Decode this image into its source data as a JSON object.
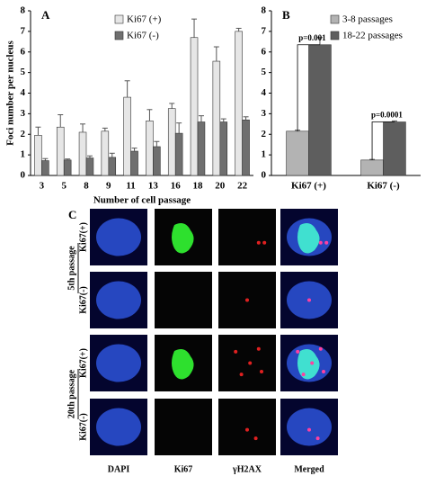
{
  "chart_data": [
    {
      "type": "bar",
      "title": "A",
      "x_label": "Number of cell passage",
      "y_label": "Foci number per nucleus",
      "categories": [
        "3",
        "5",
        "8",
        "9",
        "11",
        "13",
        "16",
        "18",
        "20",
        "22"
      ],
      "series": [
        {
          "name": "Ki67 (+)",
          "color": "#e6e6e6",
          "values": [
            1.95,
            2.35,
            2.1,
            2.15,
            3.8,
            2.65,
            3.25,
            6.7,
            5.55,
            7.0
          ],
          "errors": [
            0.4,
            0.6,
            0.4,
            0.15,
            0.8,
            0.55,
            0.25,
            0.9,
            0.7,
            0.15
          ]
        },
        {
          "name": "Ki67 (-)",
          "color": "#6f6f6f",
          "values": [
            0.72,
            0.75,
            0.85,
            0.88,
            1.18,
            1.4,
            2.05,
            2.6,
            2.6,
            2.7
          ],
          "errors": [
            0.1,
            0.05,
            0.1,
            0.2,
            0.15,
            0.25,
            0.5,
            0.3,
            0.15,
            0.15
          ]
        }
      ],
      "ylim": [
        0,
        8
      ],
      "yticks": [
        0,
        1,
        2,
        3,
        4,
        5,
        6,
        7,
        8
      ],
      "legend": "upper center"
    },
    {
      "type": "bar",
      "title": "B",
      "categories": [
        "Ki67 (+)",
        "Ki67 (-)"
      ],
      "series": [
        {
          "name": "3-8 passages",
          "color": "#b3b3b3",
          "values": [
            2.15,
            0.75
          ],
          "errors": [
            0.05,
            0.03
          ]
        },
        {
          "name": "18-22 passages",
          "color": "#5e5e5e",
          "values": [
            6.35,
            2.6
          ],
          "errors": [
            0.35,
            0.05
          ]
        }
      ],
      "annotations": [
        "p=0.001",
        "p=0.0001"
      ],
      "ylim": [
        0,
        8
      ],
      "yticks": [
        0,
        1,
        2,
        3,
        4,
        5,
        6,
        7,
        8
      ],
      "legend": "upper right"
    }
  ],
  "panel_c": {
    "label": "C",
    "groups": [
      "5th passage",
      "20th passage"
    ],
    "rows": [
      "Ki67(+)",
      "Ki67(-)",
      "Ki67(+)",
      "Ki67(-)"
    ],
    "columns": [
      "DAPI",
      "Ki67",
      "γH2AX",
      "Merged"
    ]
  }
}
